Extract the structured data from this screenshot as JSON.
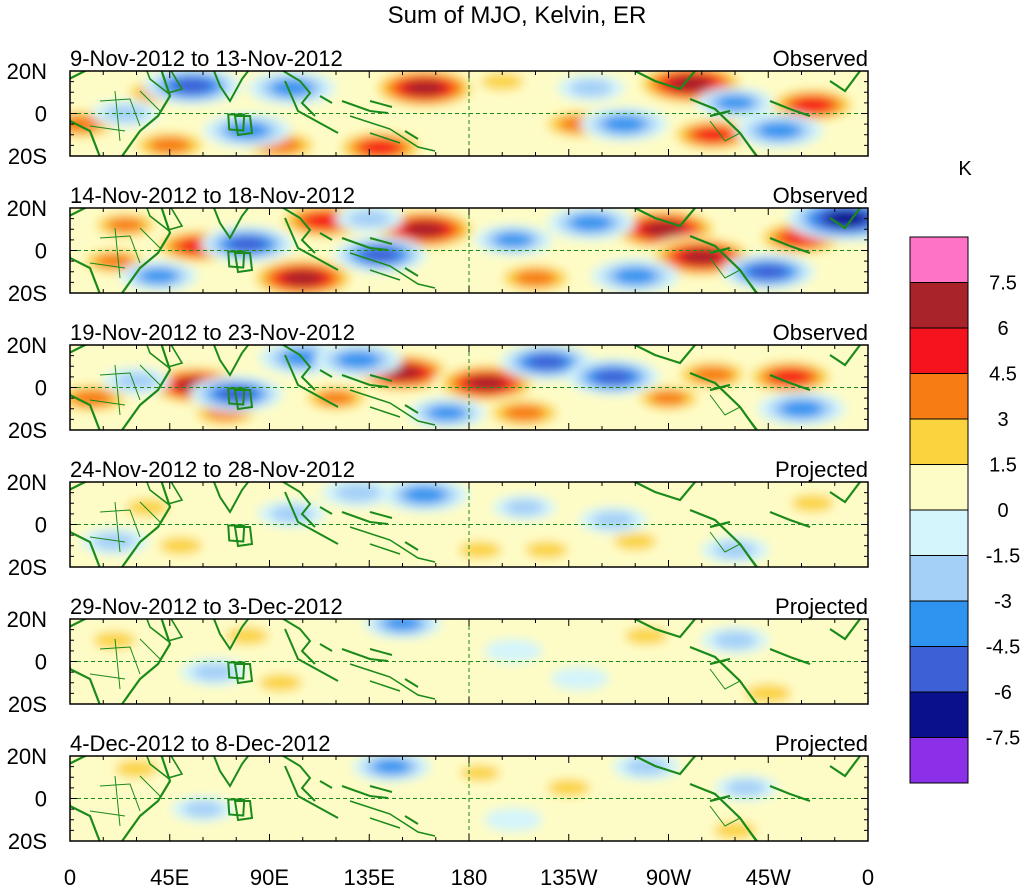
{
  "chart_data": {
    "type": "heatmap",
    "title": "Sum of MJO, Kelvin, ER",
    "units": "K",
    "x_ticks": [
      "0",
      "45E",
      "90E",
      "135E",
      "180",
      "135W",
      "90W",
      "45W",
      "0"
    ],
    "y_ticks": [
      "20N",
      "0",
      "20S"
    ],
    "lon_range": [
      0,
      360
    ],
    "lat_range": [
      -20,
      20
    ],
    "colorbar": {
      "levels": [
        "7.5",
        "6",
        "4.5",
        "3",
        "1.5",
        "0",
        "-1.5",
        "-3",
        "-4.5",
        "-6",
        "-7.5"
      ],
      "colors": [
        "#ff73c6",
        "#a8242a",
        "#f5141e",
        "#f77c14",
        "#fbd33e",
        "#fefcc6",
        "#d4f5fb",
        "#a4cff7",
        "#2f93f0",
        "#3e60d6",
        "#0a0f8c",
        "#8b2fe8"
      ]
    },
    "panels": [
      {
        "date_range": "9-Nov-2012 to 13-Nov-2012",
        "status": "Observed",
        "features": [
          {
            "lon": 160,
            "lat": 12,
            "value": 6.5
          },
          {
            "lon": 280,
            "lat": 14,
            "value": 7
          },
          {
            "lon": 335,
            "lat": 4,
            "value": 5
          },
          {
            "lon": 95,
            "lat": -15,
            "value": 4
          },
          {
            "lon": 140,
            "lat": -16,
            "value": 5
          },
          {
            "lon": 45,
            "lat": -15,
            "value": 4
          },
          {
            "lon": 5,
            "lat": -5,
            "value": 4
          },
          {
            "lon": 230,
            "lat": -5,
            "value": 4
          },
          {
            "lon": 290,
            "lat": -10,
            "value": 4.5
          },
          {
            "lon": 40,
            "lat": 10,
            "value": 3
          },
          {
            "lon": 195,
            "lat": 15,
            "value": 2
          },
          {
            "lon": 55,
            "lat": 13,
            "value": -5
          },
          {
            "lon": 100,
            "lat": 12,
            "value": -4
          },
          {
            "lon": 80,
            "lat": -8,
            "value": -4
          },
          {
            "lon": 250,
            "lat": -5,
            "value": -4
          },
          {
            "lon": 320,
            "lat": -8,
            "value": -4
          },
          {
            "lon": 300,
            "lat": 5,
            "value": -3
          },
          {
            "lon": 25,
            "lat": 0,
            "value": -2
          },
          {
            "lon": 235,
            "lat": 12,
            "value": -2
          }
        ]
      },
      {
        "date_range": "14-Nov-2012 to 18-Nov-2012",
        "status": "Observed",
        "features": [
          {
            "lon": 58,
            "lat": 2,
            "value": 5
          },
          {
            "lon": 115,
            "lat": 14,
            "value": 5.5
          },
          {
            "lon": 160,
            "lat": 10,
            "value": 6.5
          },
          {
            "lon": 105,
            "lat": -13,
            "value": 6.5
          },
          {
            "lon": 268,
            "lat": 10,
            "value": 7
          },
          {
            "lon": 285,
            "lat": -3,
            "value": 6.5
          },
          {
            "lon": 330,
            "lat": 6,
            "value": 5
          },
          {
            "lon": 210,
            "lat": -13,
            "value": 4
          },
          {
            "lon": 20,
            "lat": -5,
            "value": 3
          },
          {
            "lon": 25,
            "lat": 12,
            "value": 3
          },
          {
            "lon": 80,
            "lat": 3,
            "value": -4.5
          },
          {
            "lon": 140,
            "lat": -2,
            "value": -4.5
          },
          {
            "lon": 200,
            "lat": 5,
            "value": -3
          },
          {
            "lon": 235,
            "lat": 13,
            "value": -4
          },
          {
            "lon": 255,
            "lat": -12,
            "value": -4
          },
          {
            "lon": 350,
            "lat": 15,
            "value": -7
          },
          {
            "lon": 315,
            "lat": -10,
            "value": -4.5
          },
          {
            "lon": 40,
            "lat": -12,
            "value": -3
          },
          {
            "lon": 135,
            "lat": 15,
            "value": -2
          }
        ]
      },
      {
        "date_range": "19-Nov-2012 to 23-Nov-2012",
        "status": "Observed",
        "features": [
          {
            "lon": 57,
            "lat": 1,
            "value": 6
          },
          {
            "lon": 150,
            "lat": 7,
            "value": 6
          },
          {
            "lon": 188,
            "lat": 2,
            "value": 6
          },
          {
            "lon": 205,
            "lat": -12,
            "value": 4
          },
          {
            "lon": 290,
            "lat": 6,
            "value": 4
          },
          {
            "lon": 325,
            "lat": 5,
            "value": 5
          },
          {
            "lon": 10,
            "lat": -5,
            "value": 4
          },
          {
            "lon": 120,
            "lat": -5,
            "value": 3
          },
          {
            "lon": 270,
            "lat": -5,
            "value": 3
          },
          {
            "lon": 70,
            "lat": -12,
            "value": 3
          },
          {
            "lon": 75,
            "lat": -3,
            "value": -4.5
          },
          {
            "lon": 105,
            "lat": 14,
            "value": -4
          },
          {
            "lon": 130,
            "lat": 13,
            "value": -4
          },
          {
            "lon": 215,
            "lat": 12,
            "value": -4.5
          },
          {
            "lon": 245,
            "lat": 5,
            "value": -4.5
          },
          {
            "lon": 330,
            "lat": -10,
            "value": -4
          },
          {
            "lon": 30,
            "lat": 3,
            "value": -2
          },
          {
            "lon": 170,
            "lat": -12,
            "value": -3
          }
        ]
      },
      {
        "date_range": "24-Nov-2012 to 28-Nov-2012",
        "status": "Projected",
        "features": [
          {
            "lon": 35,
            "lat": 8,
            "value": 2
          },
          {
            "lon": 50,
            "lat": -10,
            "value": 2
          },
          {
            "lon": 185,
            "lat": -12,
            "value": 2
          },
          {
            "lon": 215,
            "lat": -12,
            "value": 2
          },
          {
            "lon": 255,
            "lat": -8,
            "value": 2
          },
          {
            "lon": 335,
            "lat": 10,
            "value": 2
          },
          {
            "lon": 115,
            "lat": -8,
            "value": 1
          },
          {
            "lon": 160,
            "lat": 14,
            "value": -4
          },
          {
            "lon": 130,
            "lat": 15,
            "value": -2.5
          },
          {
            "lon": 100,
            "lat": 5,
            "value": -2
          },
          {
            "lon": 245,
            "lat": 2,
            "value": -2
          },
          {
            "lon": 300,
            "lat": -12,
            "value": -2
          },
          {
            "lon": 20,
            "lat": -8,
            "value": -2
          },
          {
            "lon": 205,
            "lat": 8,
            "value": -1.5
          }
        ]
      },
      {
        "date_range": "29-Nov-2012 to 3-Dec-2012",
        "status": "Projected",
        "features": [
          {
            "lon": 20,
            "lat": 10,
            "value": 2
          },
          {
            "lon": 80,
            "lat": 12,
            "value": 2
          },
          {
            "lon": 95,
            "lat": -10,
            "value": 2
          },
          {
            "lon": 260,
            "lat": 12,
            "value": 2
          },
          {
            "lon": 315,
            "lat": -15,
            "value": 2.5
          },
          {
            "lon": 140,
            "lat": -12,
            "value": 1
          },
          {
            "lon": 150,
            "lat": 18,
            "value": -3
          },
          {
            "lon": 65,
            "lat": -5,
            "value": -2
          },
          {
            "lon": 300,
            "lat": 10,
            "value": -2
          },
          {
            "lon": 200,
            "lat": 5,
            "value": -1
          },
          {
            "lon": 230,
            "lat": -8,
            "value": -1
          }
        ]
      },
      {
        "date_range": "4-Dec-2012 to 8-Dec-2012",
        "status": "Projected",
        "features": [
          {
            "lon": 30,
            "lat": 14,
            "value": 2
          },
          {
            "lon": 185,
            "lat": 12,
            "value": 1.5
          },
          {
            "lon": 225,
            "lat": 5,
            "value": 2
          },
          {
            "lon": 300,
            "lat": -15,
            "value": 2
          },
          {
            "lon": 120,
            "lat": -12,
            "value": 1
          },
          {
            "lon": 95,
            "lat": 2,
            "value": 1
          },
          {
            "lon": 145,
            "lat": 15,
            "value": -3
          },
          {
            "lon": 260,
            "lat": 15,
            "value": -2
          },
          {
            "lon": 305,
            "lat": 5,
            "value": -1.5
          },
          {
            "lon": 60,
            "lat": -5,
            "value": -1.5
          },
          {
            "lon": 200,
            "lat": -10,
            "value": -1
          }
        ]
      }
    ]
  }
}
